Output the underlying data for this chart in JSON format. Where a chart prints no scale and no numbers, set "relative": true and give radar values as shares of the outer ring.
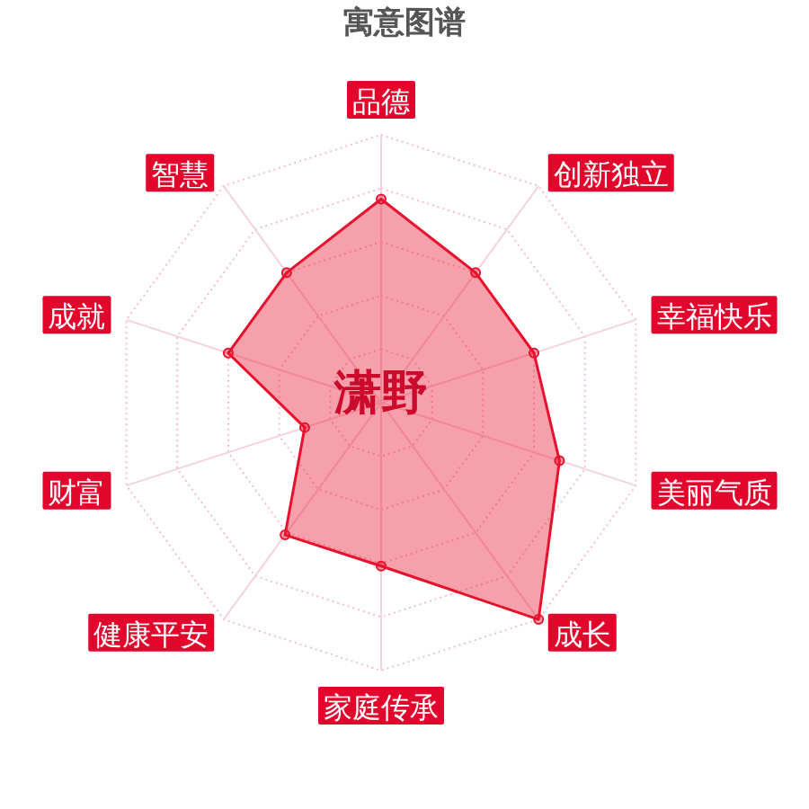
{
  "chart_data": {
    "type": "radar",
    "title": "寓意图谱",
    "categories": [
      "品德",
      "创新独立",
      "幸福快乐",
      "美丽气质",
      "成长",
      "家庭传承",
      "健康平安",
      "财富",
      "成就",
      "智慧"
    ],
    "relative": true,
    "series": [
      {
        "color": "#e8112d",
        "values": [
          0.76,
          0.6,
          0.6,
          0.7,
          1,
          0.61,
          0.61,
          0.3,
          0.6,
          0.6
        ]
      }
    ],
    "grid": true,
    "marker": "circle",
    "annotations": [
      "潇野"
    ]
  }
}
